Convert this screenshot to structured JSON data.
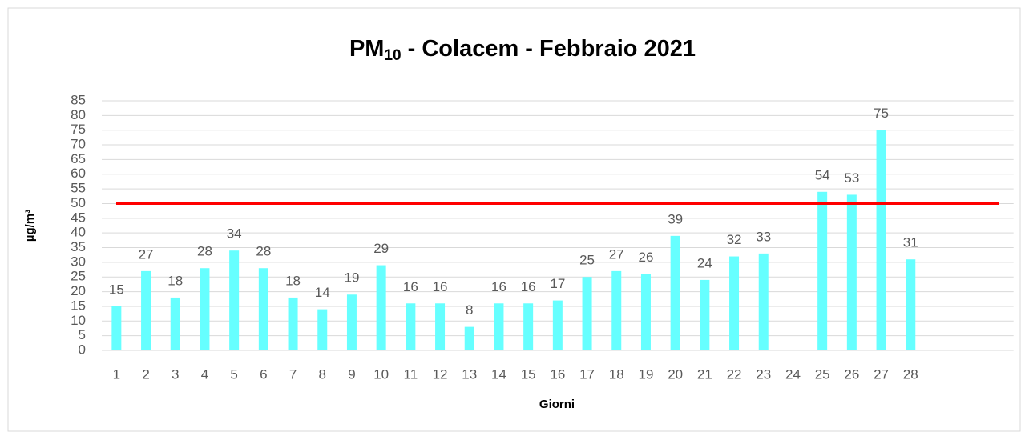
{
  "chart_data": {
    "type": "bar",
    "title": [
      "PM",
      "10",
      " - Colacem - Febbraio 2021"
    ],
    "y_label": "µg/m³",
    "x_label": "Giorni",
    "categories": [
      "1",
      "2",
      "3",
      "4",
      "5",
      "6",
      "7",
      "8",
      "9",
      "10",
      "11",
      "12",
      "13",
      "14",
      "15",
      "16",
      "17",
      "18",
      "19",
      "20",
      "21",
      "22",
      "23",
      "24",
      "25",
      "26",
      "27",
      "28",
      null,
      null,
      null
    ],
    "values": [
      15,
      27,
      18,
      28,
      34,
      28,
      18,
      14,
      19,
      29,
      16,
      16,
      8,
      16,
      16,
      17,
      25,
      27,
      26,
      39,
      24,
      32,
      33,
      null,
      54,
      53,
      75,
      31,
      null,
      null,
      null
    ],
    "color": "#66ffff",
    "threshold": 50,
    "threshold_color": "#ff0000",
    "ylim": [
      0,
      85
    ],
    "yticks": [
      0,
      5,
      10,
      15,
      20,
      25,
      30,
      35,
      40,
      45,
      50,
      55,
      60,
      65,
      70,
      75,
      80,
      85
    ],
    "grid": true
  }
}
